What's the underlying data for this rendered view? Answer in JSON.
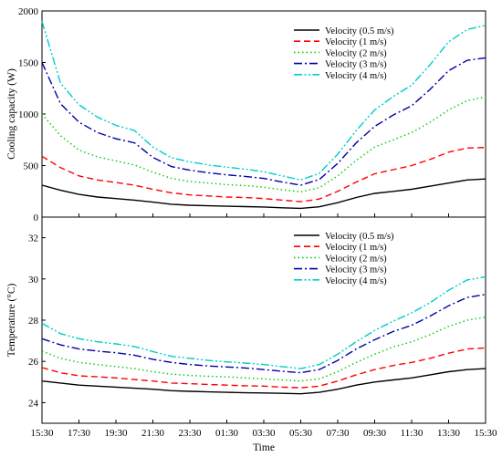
{
  "chart_data": [
    {
      "type": "line",
      "ylabel": "Cooling capacity (W)",
      "xlabel": "",
      "x": [
        "15:30",
        "16:30",
        "17:30",
        "18:30",
        "19:30",
        "20:30",
        "21:30",
        "22:30",
        "23:30",
        "00:30",
        "01:30",
        "02:30",
        "03:30",
        "04:30",
        "05:30",
        "06:30",
        "07:30",
        "08:30",
        "09:30",
        "10:30",
        "11:30",
        "12:30",
        "13:30",
        "14:30",
        "15:30"
      ],
      "xticks": [
        "15:30",
        "17:30",
        "19:30",
        "21:30",
        "23:30",
        "01:30",
        "03:30",
        "05:30",
        "07:30",
        "09:30",
        "11:30",
        "13:30",
        "15:30"
      ],
      "ylim": [
        0,
        2000
      ],
      "yticks": [
        0,
        500,
        1000,
        1500,
        2000
      ],
      "legend_position": "top-right",
      "grid": false,
      "series": [
        {
          "name": "Velocity (0.5 m/s)",
          "color": "#000000",
          "dash": "solid",
          "values": [
            310,
            260,
            220,
            195,
            180,
            165,
            145,
            125,
            115,
            110,
            105,
            102,
            98,
            90,
            85,
            100,
            140,
            190,
            230,
            250,
            270,
            300,
            330,
            360,
            370
          ]
        },
        {
          "name": "Velocity (1 m/s)",
          "color": "#ff0000",
          "dash": "dash",
          "values": [
            590,
            480,
            400,
            360,
            335,
            310,
            270,
            235,
            215,
            205,
            195,
            190,
            180,
            165,
            150,
            175,
            250,
            340,
            420,
            460,
            500,
            560,
            630,
            670,
            675
          ]
        },
        {
          "name": "Velocity (2 m/s)",
          "color": "#00cc00",
          "dash": "dot",
          "values": [
            1000,
            790,
            650,
            585,
            545,
            505,
            435,
            375,
            345,
            330,
            315,
            305,
            290,
            265,
            245,
            285,
            400,
            550,
            680,
            750,
            820,
            920,
            1040,
            1130,
            1165
          ]
        },
        {
          "name": "Velocity (3 m/s)",
          "color": "#0000aa",
          "dash": "dashdot",
          "values": [
            1500,
            1100,
            920,
            820,
            760,
            720,
            580,
            490,
            455,
            430,
            410,
            395,
            375,
            340,
            310,
            365,
            520,
            720,
            880,
            990,
            1080,
            1240,
            1420,
            1520,
            1545
          ]
        },
        {
          "name": "Velocity (4 m/s)",
          "color": "#00cccc",
          "dash": "dashdotdot",
          "values": [
            1900,
            1300,
            1090,
            970,
            890,
            840,
            680,
            575,
            535,
            505,
            485,
            465,
            440,
            400,
            360,
            425,
            610,
            840,
            1040,
            1170,
            1280,
            1480,
            1700,
            1820,
            1860
          ]
        }
      ]
    },
    {
      "type": "line",
      "ylabel": "Temperature (°C)",
      "xlabel": "Time",
      "x": [
        "15:30",
        "16:30",
        "17:30",
        "18:30",
        "19:30",
        "20:30",
        "21:30",
        "22:30",
        "23:30",
        "00:30",
        "01:30",
        "02:30",
        "03:30",
        "04:30",
        "05:30",
        "06:30",
        "07:30",
        "08:30",
        "09:30",
        "10:30",
        "11:30",
        "12:30",
        "13:30",
        "14:30",
        "15:30"
      ],
      "xticks": [
        "15:30",
        "17:30",
        "19:30",
        "21:30",
        "23:30",
        "01:30",
        "03:30",
        "05:30",
        "07:30",
        "09:30",
        "11:30",
        "13:30",
        "15:30"
      ],
      "ylim": [
        23,
        33
      ],
      "yticks": [
        24,
        26,
        28,
        30,
        32
      ],
      "legend_position": "top-right",
      "grid": false,
      "series": [
        {
          "name": "Velocity (0.5 m/s)",
          "color": "#000000",
          "dash": "solid",
          "values": [
            25.05,
            24.95,
            24.85,
            24.8,
            24.75,
            24.7,
            24.65,
            24.58,
            24.55,
            24.52,
            24.5,
            24.48,
            24.47,
            24.45,
            24.43,
            24.5,
            24.65,
            24.85,
            25.0,
            25.1,
            25.2,
            25.35,
            25.5,
            25.6,
            25.65
          ]
        },
        {
          "name": "Velocity (1 m/s)",
          "color": "#ff0000",
          "dash": "dash",
          "values": [
            25.7,
            25.45,
            25.3,
            25.25,
            25.2,
            25.12,
            25.05,
            24.95,
            24.92,
            24.88,
            24.85,
            24.82,
            24.8,
            24.75,
            24.72,
            24.8,
            25.05,
            25.35,
            25.6,
            25.8,
            25.95,
            26.15,
            26.4,
            26.6,
            26.65
          ]
        },
        {
          "name": "Velocity (2 m/s)",
          "color": "#00cc00",
          "dash": "dot",
          "values": [
            26.5,
            26.15,
            25.95,
            25.85,
            25.75,
            25.65,
            25.5,
            25.38,
            25.32,
            25.28,
            25.25,
            25.2,
            25.15,
            25.1,
            25.05,
            25.15,
            25.5,
            25.95,
            26.35,
            26.7,
            26.95,
            27.3,
            27.7,
            28.0,
            28.15
          ]
        },
        {
          "name": "Velocity (3 m/s)",
          "color": "#0000aa",
          "dash": "dashdot",
          "values": [
            27.1,
            26.8,
            26.6,
            26.5,
            26.42,
            26.3,
            26.1,
            25.95,
            25.85,
            25.78,
            25.73,
            25.68,
            25.6,
            25.52,
            25.45,
            25.6,
            26.05,
            26.6,
            27.05,
            27.45,
            27.75,
            28.2,
            28.7,
            29.1,
            29.25
          ]
        },
        {
          "name": "Velocity (4 m/s)",
          "color": "#00cccc",
          "dash": "dashdotdot",
          "values": [
            27.85,
            27.35,
            27.1,
            26.95,
            26.85,
            26.72,
            26.48,
            26.25,
            26.15,
            26.05,
            25.98,
            25.92,
            25.85,
            25.75,
            25.65,
            25.85,
            26.35,
            26.95,
            27.5,
            27.95,
            28.35,
            28.85,
            29.45,
            29.95,
            30.1
          ]
        }
      ]
    }
  ]
}
